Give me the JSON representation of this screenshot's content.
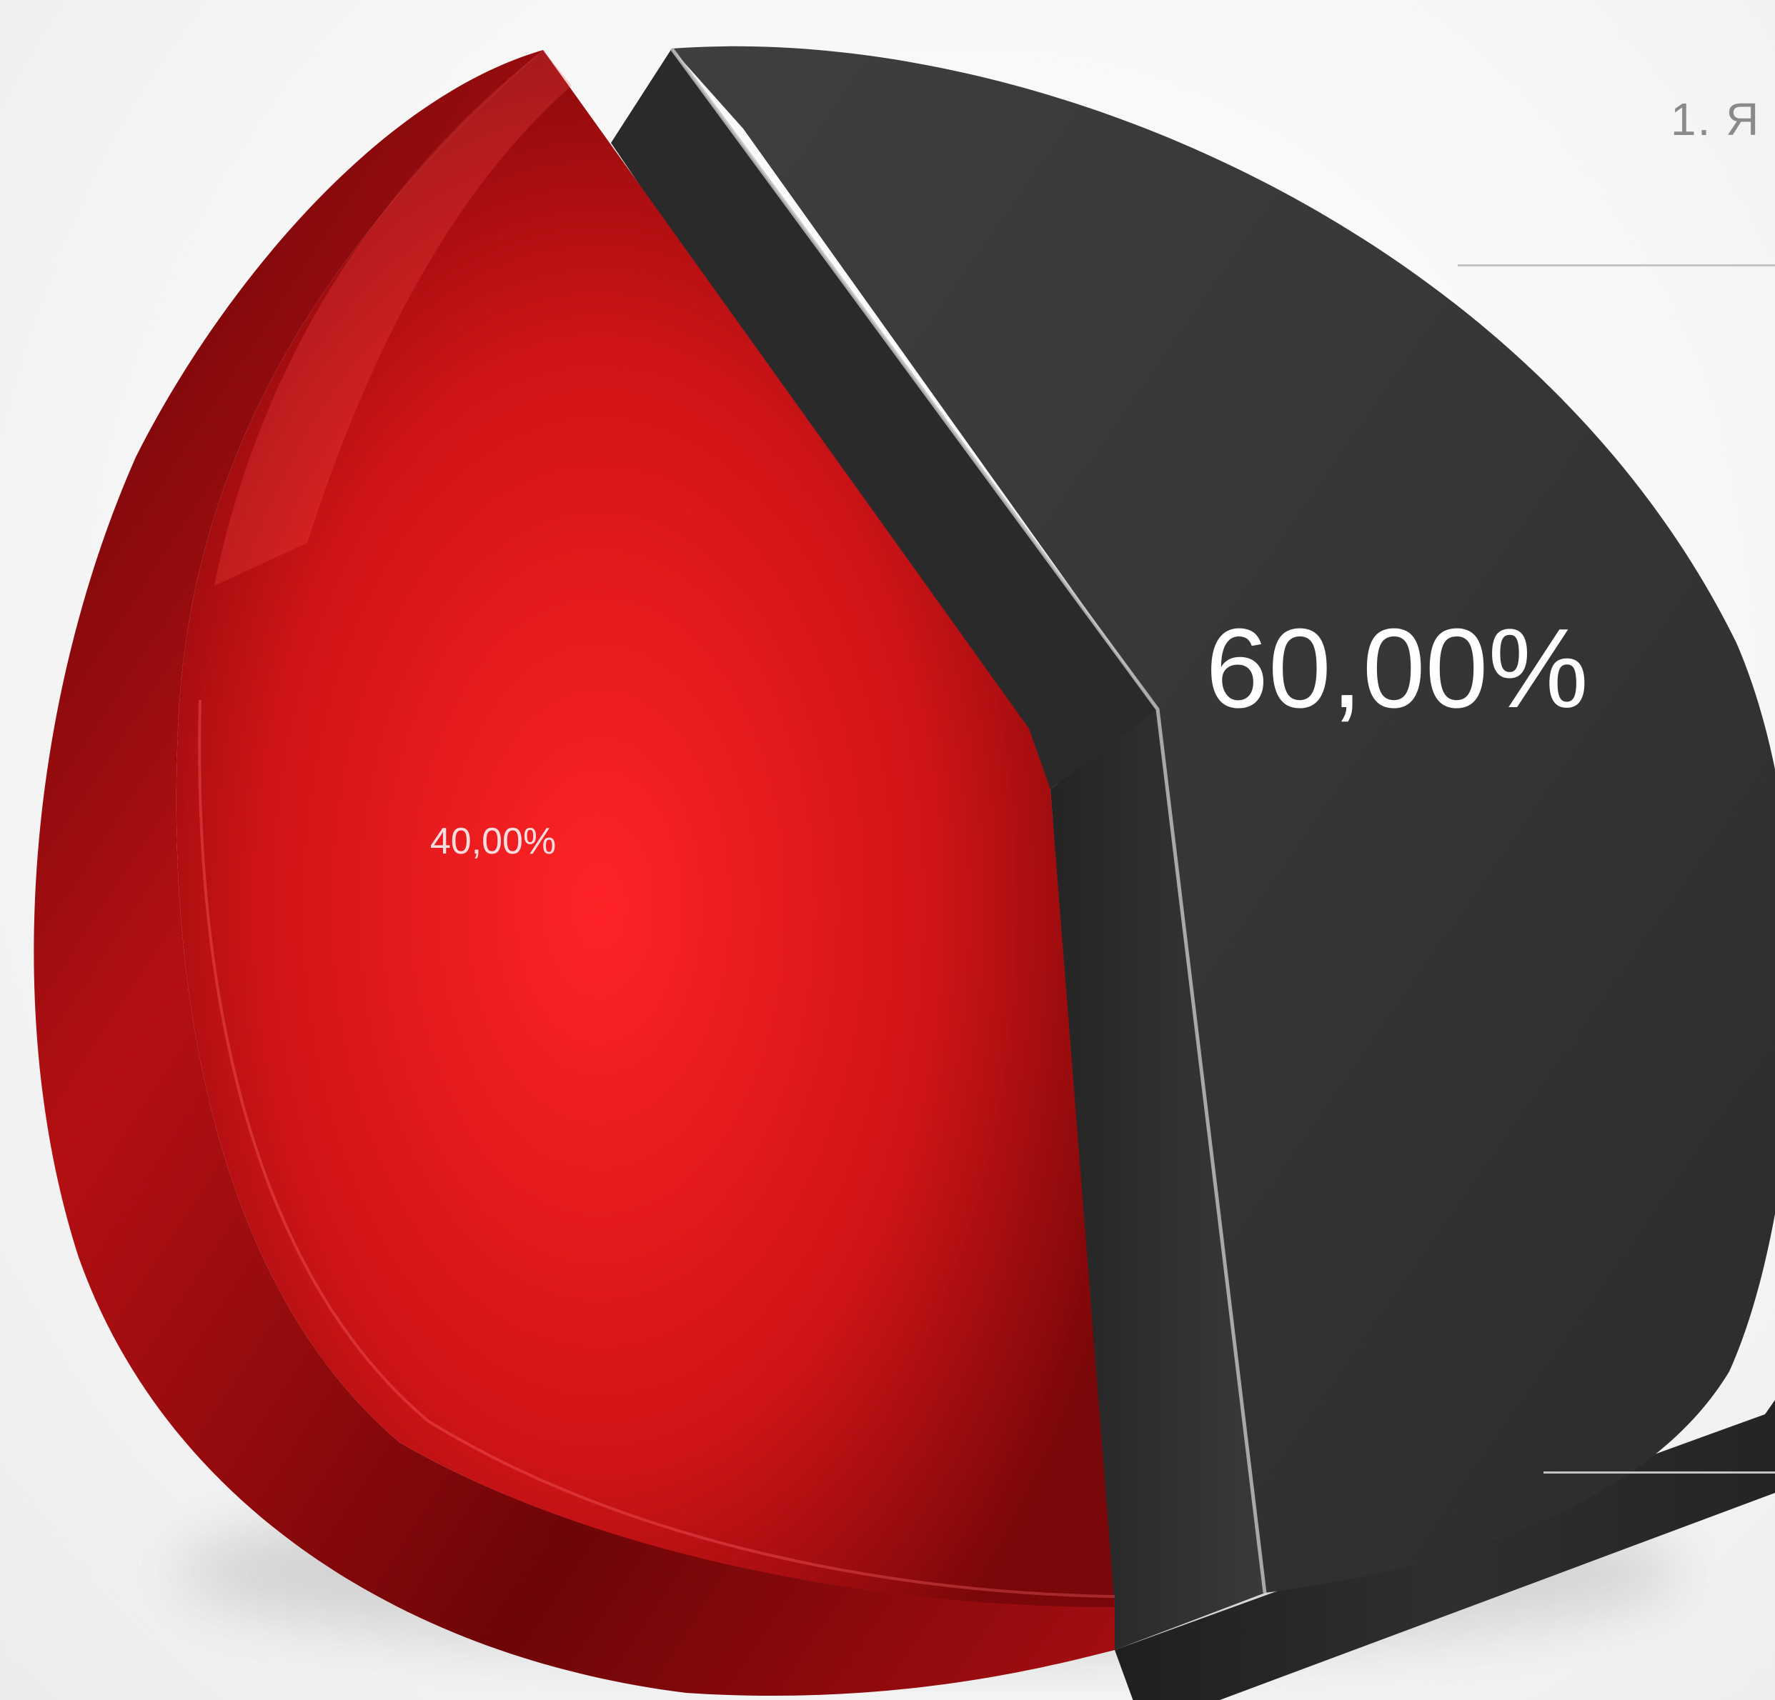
{
  "chart_data": {
    "type": "pie",
    "title": "",
    "categories": [
      "",
      ""
    ],
    "values": [
      40.0,
      60.0
    ],
    "labels": [
      "40,00%",
      "60,00%"
    ],
    "colors": [
      "#d3161a",
      "#3a3a3a"
    ],
    "legend_placement": "right",
    "style": "3d-exploded"
  },
  "legend": {
    "item_1": "1. Я"
  }
}
